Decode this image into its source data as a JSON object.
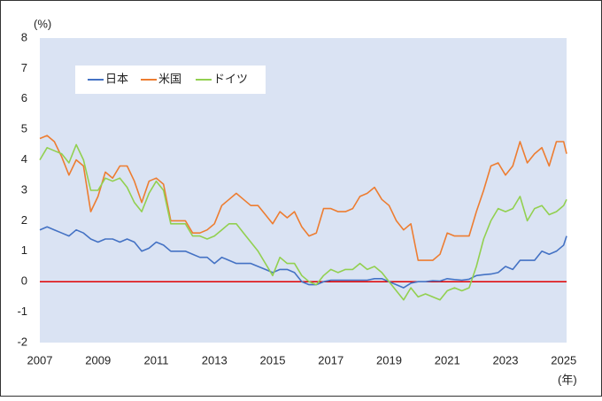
{
  "chart_data": {
    "type": "line",
    "y_label": "(%)",
    "x_label": "(年)",
    "x": [
      2007,
      2007.25,
      2007.5,
      2007.75,
      2008,
      2008.25,
      2008.5,
      2008.75,
      2009,
      2009.25,
      2009.5,
      2009.75,
      2010,
      2010.25,
      2010.5,
      2010.75,
      2011,
      2011.25,
      2011.5,
      2011.75,
      2012,
      2012.25,
      2012.5,
      2012.75,
      2013,
      2013.25,
      2013.5,
      2013.75,
      2014,
      2014.25,
      2014.5,
      2014.75,
      2015,
      2015.25,
      2015.5,
      2015.75,
      2016,
      2016.25,
      2016.5,
      2016.75,
      2017,
      2017.25,
      2017.5,
      2017.75,
      2018,
      2018.25,
      2018.5,
      2018.75,
      2019,
      2019.25,
      2019.5,
      2019.75,
      2020,
      2020.25,
      2020.5,
      2020.75,
      2021,
      2021.25,
      2021.5,
      2021.75,
      2022,
      2022.25,
      2022.5,
      2022.75,
      2023,
      2023.25,
      2023.5,
      2023.75,
      2024,
      2024.25,
      2024.5,
      2024.75,
      2025,
      2025.1
    ],
    "series": [
      {
        "name": "日本",
        "color": "#4472c4",
        "values": [
          1.7,
          1.8,
          1.7,
          1.6,
          1.5,
          1.7,
          1.6,
          1.4,
          1.3,
          1.4,
          1.4,
          1.3,
          1.4,
          1.3,
          1.0,
          1.1,
          1.3,
          1.2,
          1.0,
          1.0,
          1.0,
          0.9,
          0.8,
          0.8,
          0.6,
          0.8,
          0.7,
          0.6,
          0.6,
          0.6,
          0.5,
          0.4,
          0.3,
          0.4,
          0.4,
          0.3,
          0.0,
          -0.1,
          -0.1,
          0.0,
          0.05,
          0.05,
          0.05,
          0.05,
          0.05,
          0.05,
          0.1,
          0.1,
          0.0,
          -0.1,
          -0.2,
          -0.05,
          0.0,
          0.0,
          0.03,
          0.02,
          0.1,
          0.07,
          0.05,
          0.08,
          0.2,
          0.23,
          0.25,
          0.3,
          0.5,
          0.4,
          0.7,
          0.7,
          0.7,
          1.0,
          0.9,
          1.0,
          1.2,
          1.5
        ]
      },
      {
        "name": "米国",
        "color": "#ed7d31",
        "values": [
          4.7,
          4.8,
          4.6,
          4.1,
          3.5,
          4.0,
          3.8,
          2.3,
          2.8,
          3.6,
          3.4,
          3.8,
          3.8,
          3.3,
          2.6,
          3.3,
          3.4,
          3.2,
          2.0,
          2.0,
          2.0,
          1.6,
          1.6,
          1.7,
          1.9,
          2.5,
          2.7,
          2.9,
          2.7,
          2.5,
          2.5,
          2.2,
          1.9,
          2.3,
          2.1,
          2.3,
          1.8,
          1.5,
          1.6,
          2.4,
          2.4,
          2.3,
          2.3,
          2.4,
          2.8,
          2.9,
          3.1,
          2.7,
          2.5,
          2.0,
          1.7,
          1.9,
          0.7,
          0.7,
          0.7,
          0.9,
          1.6,
          1.5,
          1.5,
          1.5,
          2.3,
          3.0,
          3.8,
          3.9,
          3.5,
          3.8,
          4.6,
          3.9,
          4.2,
          4.4,
          3.8,
          4.6,
          4.6,
          4.2
        ]
      },
      {
        "name": "ドイツ",
        "color": "#92d050",
        "values": [
          4.0,
          4.4,
          4.3,
          4.2,
          3.9,
          4.5,
          4.0,
          3.0,
          3.0,
          3.4,
          3.3,
          3.4,
          3.1,
          2.6,
          2.3,
          2.9,
          3.3,
          3.0,
          1.9,
          1.9,
          1.9,
          1.5,
          1.5,
          1.4,
          1.5,
          1.7,
          1.9,
          1.9,
          1.6,
          1.3,
          1.0,
          0.6,
          0.2,
          0.8,
          0.6,
          0.6,
          0.2,
          0.0,
          -0.1,
          0.2,
          0.4,
          0.3,
          0.4,
          0.4,
          0.6,
          0.4,
          0.5,
          0.3,
          0.0,
          -0.3,
          -0.6,
          -0.2,
          -0.5,
          -0.4,
          -0.5,
          -0.6,
          -0.3,
          -0.2,
          -0.3,
          -0.2,
          0.5,
          1.4,
          2.0,
          2.4,
          2.3,
          2.4,
          2.8,
          2.0,
          2.4,
          2.5,
          2.2,
          2.3,
          2.5,
          2.7
        ]
      }
    ],
    "xlim": [
      2007,
      2025.1
    ],
    "xticks": [
      2007,
      2009,
      2011,
      2013,
      2015,
      2017,
      2019,
      2021,
      2023,
      2025
    ],
    "ylim": [
      -2,
      8
    ],
    "yticks": [
      -2,
      -1,
      0,
      1,
      2,
      3,
      4,
      5,
      6,
      7,
      8
    ],
    "reference_line": {
      "value": 0,
      "color": "#e00000"
    },
    "plot_background": "#dae3f3",
    "legend": "upper left"
  }
}
